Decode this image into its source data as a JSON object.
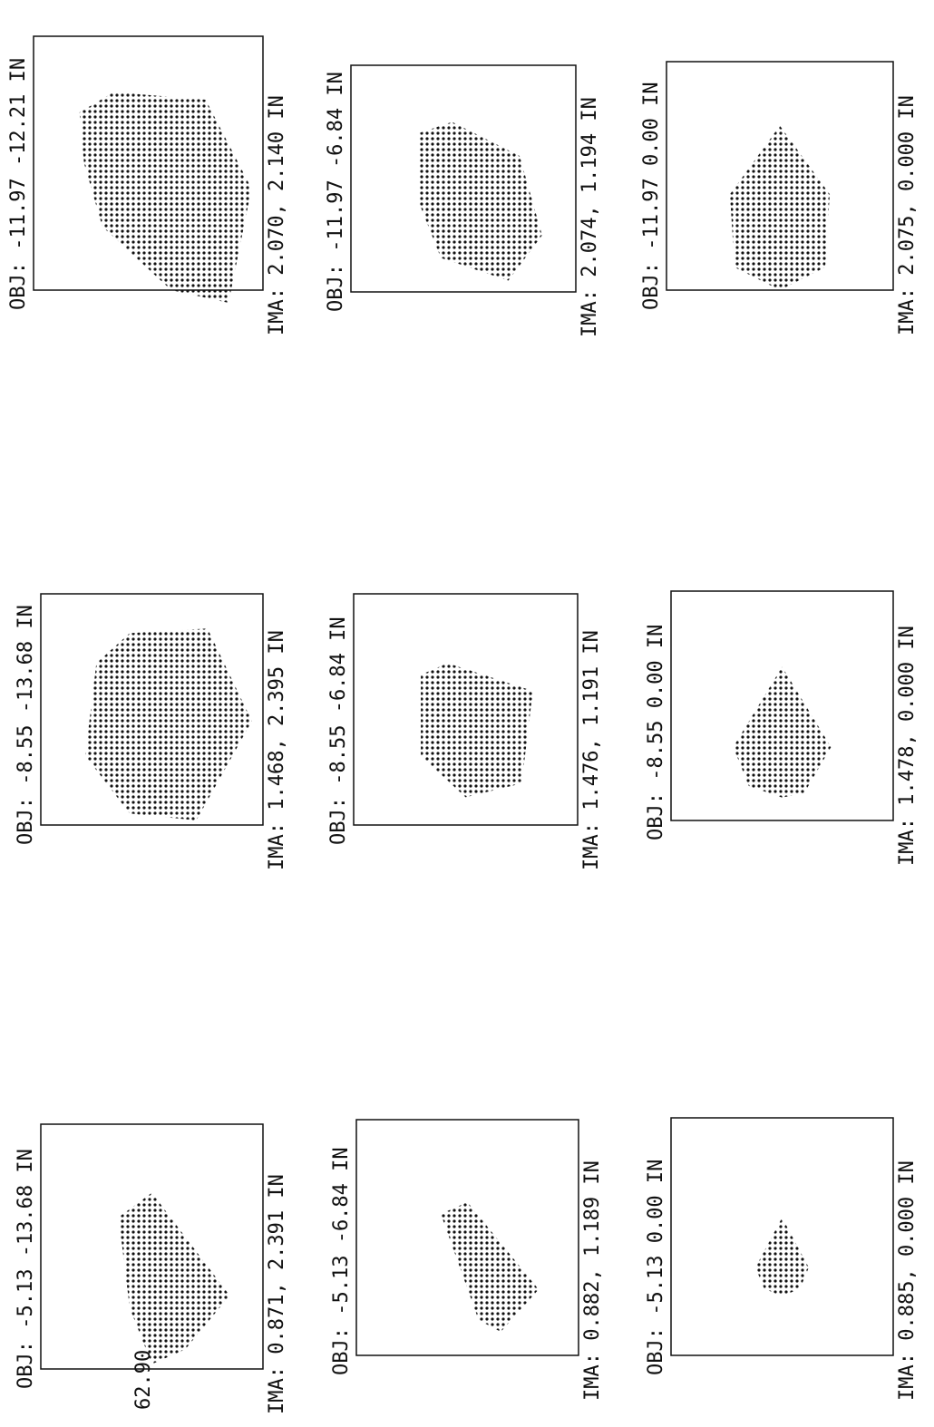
{
  "panels": [
    {
      "obj": "OBJ: -11.97  -12.21 IN",
      "ima": "IMA: 2.070, 2.140 IN"
    },
    {
      "obj": "OBJ: -11.97  -6.84 IN",
      "ima": "IMA: 2.074, 1.194 IN"
    },
    {
      "obj": "OBJ: -11.97  0.00 IN",
      "ima": "IMA: 2.075, 0.000 IN"
    },
    {
      "obj": "OBJ: -8.55  -13.68 IN",
      "ima": "IMA: 1.468, 2.395 IN"
    },
    {
      "obj": "OBJ: -8.55  -6.84 IN",
      "ima": "IMA: 1.476, 1.191 IN"
    },
    {
      "obj": "OBJ: -8.55  0.00 IN",
      "ima": "IMA: 1.478, 0.000 IN"
    },
    {
      "obj": "OBJ: -5.13  -13.68 IN",
      "ima": "IMA: 0.871, 2.391 IN"
    },
    {
      "obj": "OBJ: -5.13  -6.84 IN",
      "ima": "IMA: 0.882, 1.189 IN"
    },
    {
      "obj": "OBJ: -5.13  0.00 IN",
      "ima": "IMA: 0.885, 0.000 IN"
    }
  ],
  "note": "62.90"
}
